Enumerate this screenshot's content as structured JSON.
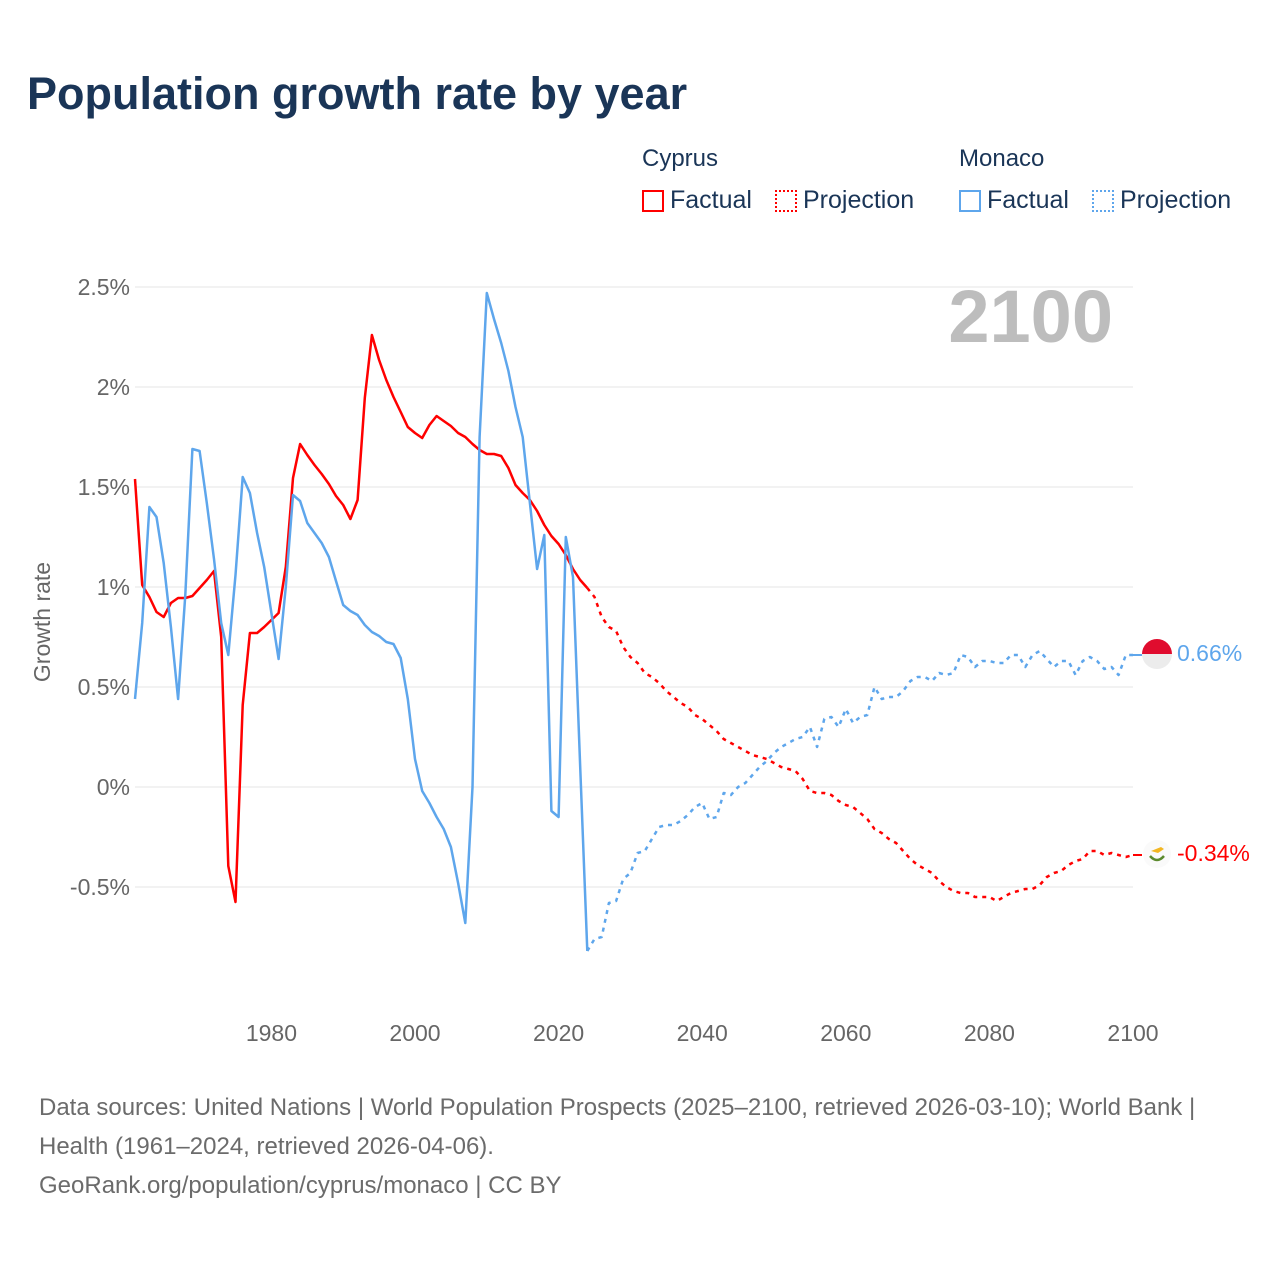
{
  "title": "Population growth rate by year",
  "legend": {
    "groups": [
      {
        "name": "Cyprus",
        "factual": "Factual",
        "projection": "Projection",
        "color": "#ff0000"
      },
      {
        "name": "Monaco",
        "factual": "Factual",
        "projection": "Projection",
        "color": "#5ea6ec"
      }
    ]
  },
  "footer": {
    "sources": "Data sources: United Nations | World Population Prospects (2025–2100, retrieved 2026-03-10); World Bank | Health (1961–2024, retrieved 2026-04-06).",
    "credit": "GeoRank.org/population/cyprus/monaco | CC BY"
  },
  "chart_data": {
    "type": "line",
    "title": "Population growth rate by year",
    "xlabel": "",
    "ylabel": "Growth rate",
    "current_year_label": "2100",
    "xlim": [
      1961,
      2100
    ],
    "ylim": [
      -0.9,
      2.55
    ],
    "x_ticks": [
      1980,
      2000,
      2020,
      2040,
      2060,
      2080,
      2100
    ],
    "y_ticks": [
      {
        "v": -0.5,
        "label": "-0.5%"
      },
      {
        "v": 0,
        "label": "0%"
      },
      {
        "v": 0.5,
        "label": "0.5%"
      },
      {
        "v": 1,
        "label": "1%"
      },
      {
        "v": 1.5,
        "label": "1.5%"
      },
      {
        "v": 2,
        "label": "2%"
      },
      {
        "v": 2.5,
        "label": "2.5%"
      }
    ],
    "grid": true,
    "legend_position": "top-right",
    "series": [
      {
        "name": "Cyprus",
        "kind": "Factual",
        "color": "#ff0000",
        "start_year": 1961,
        "values": [
          1.54,
          1.01,
          0.95,
          0.875,
          0.85,
          0.92,
          0.945,
          0.945,
          0.955,
          0.995,
          1.035,
          1.08,
          0.75,
          -0.395,
          -0.575,
          0.41,
          0.77,
          0.77,
          0.8,
          0.835,
          0.87,
          1.1,
          1.545,
          1.715,
          1.66,
          1.61,
          1.565,
          1.515,
          1.455,
          1.41,
          1.34,
          1.435,
          1.945,
          2.26,
          2.135,
          2.035,
          1.95,
          1.875,
          1.8,
          1.77,
          1.745,
          1.81,
          1.855,
          1.83,
          1.805,
          1.77,
          1.75,
          1.715,
          1.685,
          1.665,
          1.665,
          1.655,
          1.595,
          1.51,
          1.47,
          1.435,
          1.38,
          1.31,
          1.255,
          1.215,
          1.16,
          1.09,
          1.035,
          0.995
        ]
      },
      {
        "name": "Cyprus",
        "kind": "Projection",
        "color": "#ff0000",
        "start_year": 2024,
        "values": [
          0.995,
          0.95,
          0.85,
          0.8,
          0.78,
          0.7,
          0.65,
          0.62,
          0.57,
          0.55,
          0.52,
          0.48,
          0.45,
          0.42,
          0.4,
          0.36,
          0.34,
          0.31,
          0.28,
          0.24,
          0.22,
          0.2,
          0.18,
          0.16,
          0.15,
          0.14,
          0.12,
          0.1,
          0.09,
          0.08,
          0.04,
          -0.02,
          -0.03,
          -0.03,
          -0.04,
          -0.07,
          -0.09,
          -0.1,
          -0.13,
          -0.16,
          -0.21,
          -0.23,
          -0.26,
          -0.28,
          -0.32,
          -0.36,
          -0.39,
          -0.41,
          -0.43,
          -0.47,
          -0.5,
          -0.52,
          -0.53,
          -0.53,
          -0.55,
          -0.55,
          -0.55,
          -0.57,
          -0.55,
          -0.53,
          -0.52,
          -0.51,
          -0.51,
          -0.49,
          -0.45,
          -0.43,
          -0.42,
          -0.39,
          -0.37,
          -0.36,
          -0.32,
          -0.32,
          -0.34,
          -0.33,
          -0.34,
          -0.35,
          -0.34
        ]
      },
      {
        "name": "Monaco",
        "kind": "Factual",
        "color": "#5ea6ec",
        "start_year": 1961,
        "values": [
          0.44,
          0.82,
          1.4,
          1.35,
          1.12,
          0.8,
          0.44,
          0.96,
          1.69,
          1.68,
          1.42,
          1.14,
          0.82,
          0.66,
          1.06,
          1.55,
          1.47,
          1.27,
          1.1,
          0.87,
          0.64,
          1.0,
          1.46,
          1.43,
          1.32,
          1.27,
          1.22,
          1.15,
          1.03,
          0.91,
          0.88,
          0.86,
          0.81,
          0.775,
          0.755,
          0.725,
          0.715,
          0.645,
          0.44,
          0.14,
          -0.02,
          -0.08,
          -0.15,
          -0.21,
          -0.3,
          -0.48,
          -0.68,
          0.0,
          1.75,
          2.47,
          2.34,
          2.22,
          2.08,
          1.9,
          1.75,
          1.42,
          1.09,
          1.26,
          -0.12,
          -0.15,
          1.25,
          1.05,
          0.1,
          -0.82
        ]
      },
      {
        "name": "Monaco",
        "kind": "Projection",
        "color": "#5ea6ec",
        "start_year": 2024,
        "values": [
          -0.82,
          -0.76,
          -0.75,
          -0.58,
          -0.57,
          -0.46,
          -0.43,
          -0.33,
          -0.32,
          -0.26,
          -0.2,
          -0.19,
          -0.19,
          -0.17,
          -0.14,
          -0.1,
          -0.08,
          -0.16,
          -0.15,
          -0.03,
          -0.04,
          0.0,
          0.02,
          0.06,
          0.1,
          0.13,
          0.17,
          0.2,
          0.22,
          0.24,
          0.25,
          0.3,
          0.2,
          0.34,
          0.35,
          0.3,
          0.39,
          0.32,
          0.35,
          0.36,
          0.5,
          0.44,
          0.45,
          0.45,
          0.48,
          0.53,
          0.55,
          0.55,
          0.53,
          0.57,
          0.56,
          0.57,
          0.66,
          0.65,
          0.6,
          0.63,
          0.63,
          0.62,
          0.62,
          0.66,
          0.66,
          0.6,
          0.66,
          0.68,
          0.64,
          0.6,
          0.63,
          0.63,
          0.56,
          0.63,
          0.65,
          0.63,
          0.59,
          0.6,
          0.56,
          0.66,
          0.66
        ]
      }
    ],
    "end_labels": [
      {
        "name": "Monaco",
        "label": "0.66%",
        "color": "#5ea6ec"
      },
      {
        "name": "Cyprus",
        "label": "-0.34%",
        "color": "#ff0000"
      }
    ]
  }
}
